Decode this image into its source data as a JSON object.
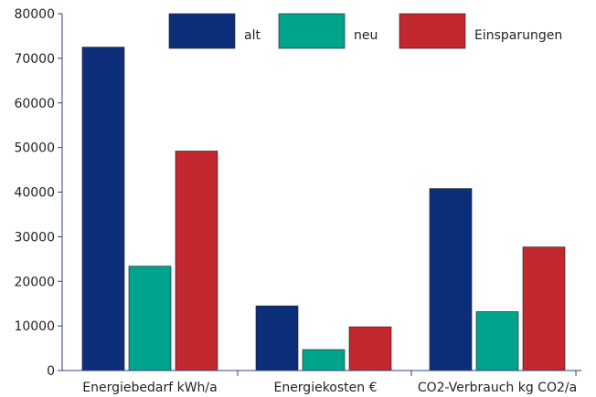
{
  "chart_data": {
    "type": "bar",
    "categories": [
      "Energiebedarf kWh/a",
      "Energiekosten €",
      "CO2-Verbrauch kg CO2/a"
    ],
    "series": [
      {
        "name": "alt",
        "color": "#0d2f7a",
        "values": [
          72500,
          14500,
          40800
        ]
      },
      {
        "name": "neu",
        "color": "#00a48c",
        "values": [
          23400,
          4700,
          13200
        ]
      },
      {
        "name": "Einsparungen",
        "color": "#c1272d",
        "values": [
          49200,
          9800,
          27700
        ]
      }
    ],
    "yticks": [
      "0",
      "10000",
      "20000",
      "30000",
      "40000",
      "50000",
      "60000",
      "70000",
      "80000"
    ],
    "ylim": [
      0,
      80000
    ],
    "legend_position": "top",
    "grid": false
  }
}
